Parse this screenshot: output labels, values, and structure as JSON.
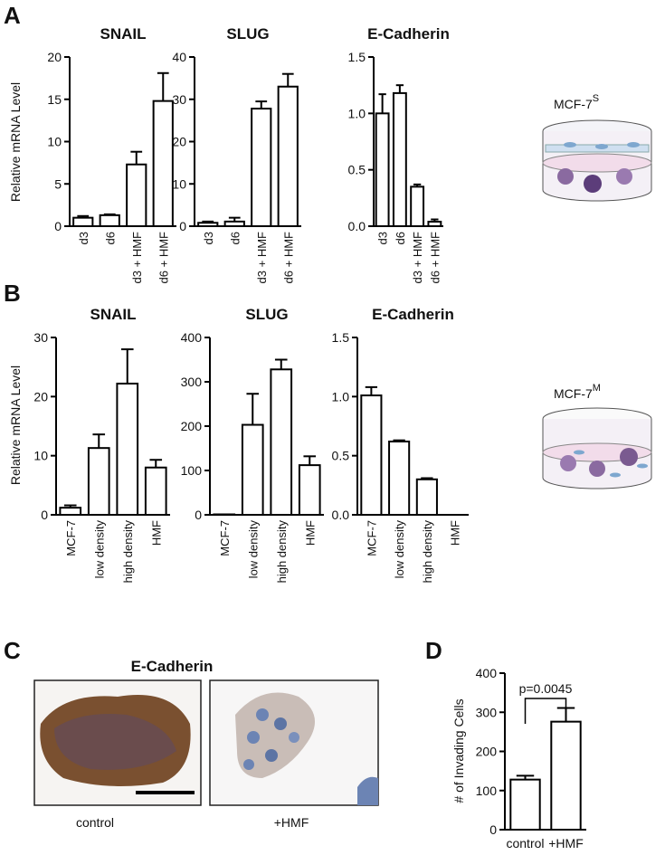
{
  "labels": {
    "panel_a": "A",
    "panel_b": "B",
    "panel_c": "C",
    "panel_d": "D",
    "inset_s": "MCF-7",
    "inset_s_sup": "S",
    "inset_m": "MCF-7",
    "inset_m_sup": "M",
    "image_title": "E-Cadherin",
    "image_left": "control",
    "image_right": "+HMF"
  },
  "chart_data": [
    {
      "type": "bar",
      "title": "SNAIL",
      "y_label": "Relative mRNA Level",
      "categories": [
        "d3",
        "d6",
        "d3 + HMF",
        "d6 + HMF"
      ],
      "values": [
        1.0,
        1.3,
        7.3,
        14.8
      ],
      "errors": [
        0.2,
        0.1,
        1.5,
        3.3
      ],
      "color": "#ffffff",
      "ylim": [
        0,
        20
      ],
      "yticks": [
        0,
        5,
        10,
        15,
        20
      ]
    },
    {
      "type": "bar",
      "title": "SLUG",
      "categories": [
        "d3",
        "d6",
        "d3 + HMF",
        "d6 + HMF"
      ],
      "values": [
        0.8,
        1.1,
        27.8,
        33.0
      ],
      "errors": [
        0.3,
        0.9,
        1.7,
        3.0
      ],
      "color": "#ffffff",
      "ylim": [
        0,
        40
      ],
      "yticks": [
        0,
        10,
        20,
        30,
        40
      ]
    },
    {
      "type": "bar",
      "title": "E-Cadherin",
      "categories": [
        "d3",
        "d6",
        "d3 + HMF",
        "d6 + HMF"
      ],
      "values": [
        1.0,
        1.18,
        0.35,
        0.04
      ],
      "errors": [
        0.17,
        0.07,
        0.02,
        0.02
      ],
      "color": "#ffffff",
      "ylim": [
        0,
        1.5
      ],
      "yticks": [
        {
          "value": 0,
          "label": "0.0"
        },
        0.5,
        {
          "value": 1,
          "label": "1.0"
        },
        1.5
      ]
    },
    {
      "type": "bar",
      "title": "SNAIL",
      "y_label": "Relative mRNA Level",
      "categories": [
        "MCF-7",
        "low density",
        "high density",
        "HMF"
      ],
      "values": [
        1.2,
        11.3,
        22.2,
        8.0
      ],
      "errors": [
        0.4,
        2.3,
        5.8,
        1.3
      ],
      "color": "#ffffff",
      "ylim": [
        0,
        30
      ],
      "yticks": [
        0,
        10,
        20,
        30
      ]
    },
    {
      "type": "bar",
      "title": "SLUG",
      "categories": [
        "MCF-7",
        "low density",
        "high density",
        "HMF"
      ],
      "values": [
        1,
        203,
        328,
        112
      ],
      "errors": [
        0,
        70,
        22,
        20
      ],
      "color": "#ffffff",
      "ylim": [
        0,
        400
      ],
      "yticks": [
        0,
        100,
        200,
        300,
        400
      ]
    },
    {
      "type": "bar",
      "title": "E-Cadherin",
      "categories": [
        "MCF-7",
        "low density",
        "high density",
        "HMF"
      ],
      "values": [
        1.01,
        0.62,
        0.3,
        0
      ],
      "errors": [
        0.07,
        0.01,
        0.01,
        0
      ],
      "color": "#ffffff",
      "ylim": [
        0,
        1.5
      ],
      "yticks": [
        {
          "value": 0,
          "label": "0.0"
        },
        0.5,
        {
          "value": 1,
          "label": "1.0"
        },
        1.5
      ]
    },
    {
      "type": "bar",
      "y_label": "# of Invading Cells",
      "annotation": "p=0.0045",
      "categories": [
        "control",
        "+HMF"
      ],
      "values": [
        128,
        276
      ],
      "errors": [
        10,
        35
      ],
      "color": "#ffffff",
      "ylim": [
        0,
        400
      ],
      "yticks": [
        0,
        100,
        200,
        300,
        400
      ]
    }
  ]
}
